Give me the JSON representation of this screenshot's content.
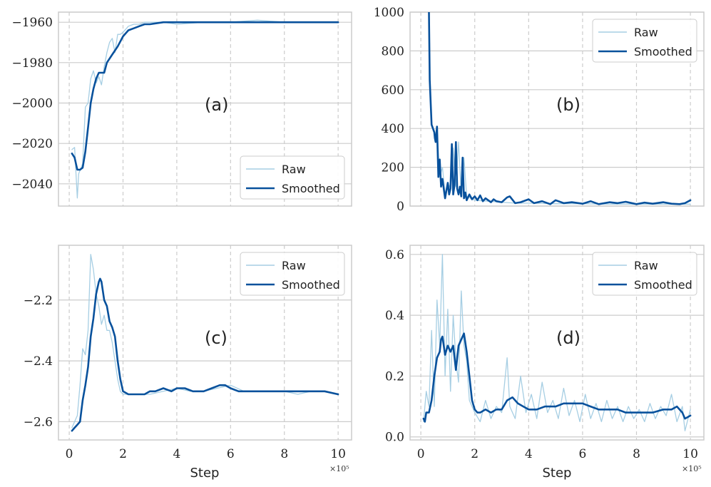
{
  "colors": {
    "raw": "#a6cee3",
    "smoothed": "#08519c",
    "grid": "#cccccc",
    "frame": "#cccccc"
  },
  "chart_data": [
    {
      "id": "a",
      "type": "line",
      "panel_label": "(a)",
      "xlabel": "",
      "ylabel": "",
      "xlim": [
        -0.4,
        10.5
      ],
      "ylim": [
        -2051,
        -1955
      ],
      "xticks": [
        0,
        2,
        4,
        6,
        8,
        10
      ],
      "yticks": [
        -2040,
        -2020,
        -2000,
        -1980,
        -1960
      ],
      "ytick_labels": [
        "−2040",
        "−2020",
        "−2000",
        "−1980",
        "−1960"
      ],
      "show_xticklabels": false,
      "x_scale_label": "",
      "legend": {
        "position": "lower-right",
        "entries": [
          "Raw",
          "Smoothed"
        ]
      },
      "series": [
        {
          "name": "Raw",
          "x": [
            0.1,
            0.2,
            0.3,
            0.35,
            0.5,
            0.6,
            0.7,
            0.8,
            0.9,
            1.0,
            1.1,
            1.2,
            1.3,
            1.4,
            1.5,
            1.6,
            1.7,
            1.8,
            1.9,
            2.0,
            2.2,
            2.4,
            2.6,
            2.8,
            3.0,
            3.2,
            3.5,
            4,
            5,
            6,
            7,
            8,
            9,
            10
          ],
          "y": [
            -2023,
            -2022,
            -2047,
            -2035,
            -2030,
            -2002,
            -2000,
            -1988,
            -1984,
            -1990,
            -1987,
            -1991,
            -1982,
            -1975,
            -1970,
            -1968,
            -1975,
            -1966,
            -1966,
            -1965,
            -1962,
            -1961,
            -1961,
            -1960,
            -1960,
            -1960,
            -1960,
            -1961,
            -1960,
            -1960,
            -1959,
            -1960,
            -1960,
            -1960
          ]
        },
        {
          "name": "Smoothed",
          "x": [
            0.1,
            0.2,
            0.3,
            0.4,
            0.5,
            0.6,
            0.7,
            0.8,
            0.9,
            1.0,
            1.1,
            1.2,
            1.3,
            1.4,
            1.6,
            1.8,
            2.0,
            2.2,
            2.4,
            2.6,
            2.8,
            3.0,
            3.5,
            4,
            5,
            6,
            7,
            8,
            9,
            10
          ],
          "y": [
            -2025,
            -2027,
            -2033,
            -2033,
            -2032,
            -2024,
            -2012,
            -2000,
            -1993,
            -1988,
            -1985,
            -1985,
            -1985,
            -1980,
            -1976,
            -1972,
            -1967,
            -1964,
            -1963,
            -1962,
            -1961,
            -1961,
            -1960,
            -1960,
            -1960,
            -1960,
            -1960,
            -1960,
            -1960,
            -1960
          ]
        }
      ]
    },
    {
      "id": "b",
      "type": "line",
      "panel_label": "(b)",
      "xlabel": "",
      "ylabel": "",
      "xlim": [
        -0.4,
        10.5
      ],
      "ylim": [
        0,
        1000
      ],
      "xticks": [
        0,
        2,
        4,
        6,
        8,
        10
      ],
      "yticks": [
        0,
        200,
        400,
        600,
        800,
        1000
      ],
      "ytick_labels": [
        "0",
        "200",
        "400",
        "600",
        "800",
        "1000"
      ],
      "show_xticklabels": false,
      "x_scale_label": "",
      "legend": {
        "position": "top-right",
        "entries": [
          "Raw",
          "Smoothed"
        ]
      },
      "series": [
        {
          "name": "Raw",
          "x": [
            0.3,
            0.33,
            0.4,
            0.5,
            0.55,
            0.6,
            0.7,
            0.8,
            0.9,
            1.0,
            1.1,
            1.2,
            1.3,
            1.4,
            1.5,
            1.6,
            1.7,
            2,
            2.5,
            3,
            3.5,
            4,
            5,
            6,
            7,
            8,
            9,
            10
          ],
          "y": [
            1000,
            650,
            420,
            390,
            330,
            410,
            150,
            200,
            60,
            120,
            90,
            300,
            100,
            330,
            60,
            250,
            50,
            30,
            25,
            20,
            15,
            15,
            12,
            12,
            10,
            10,
            10,
            10
          ]
        },
        {
          "name": "Smoothed",
          "x": [
            0.3,
            0.33,
            0.4,
            0.5,
            0.52,
            0.55,
            0.6,
            0.65,
            0.7,
            0.75,
            0.8,
            0.9,
            1.0,
            1.05,
            1.1,
            1.15,
            1.2,
            1.25,
            1.3,
            1.35,
            1.4,
            1.45,
            1.5,
            1.55,
            1.6,
            1.65,
            1.7,
            1.8,
            1.9,
            2.0,
            2.1,
            2.2,
            2.3,
            2.4,
            2.5,
            2.6,
            2.7,
            2.8,
            3.0,
            3.2,
            3.3,
            3.5,
            3.7,
            4.0,
            4.2,
            4.5,
            4.8,
            5.0,
            5.3,
            5.6,
            6.0,
            6.3,
            6.6,
            7.0,
            7.3,
            7.6,
            8.0,
            8.3,
            8.6,
            9.0,
            9.3,
            9.6,
            9.8,
            10.0
          ],
          "y": [
            1000,
            650,
            420,
            380,
            350,
            330,
            410,
            150,
            240,
            100,
            140,
            40,
            120,
            60,
            90,
            320,
            60,
            110,
            330,
            90,
            60,
            100,
            50,
            250,
            40,
            70,
            30,
            60,
            35,
            50,
            30,
            55,
            25,
            40,
            30,
            20,
            35,
            25,
            20,
            45,
            50,
            15,
            20,
            35,
            15,
            25,
            10,
            30,
            15,
            20,
            12,
            25,
            10,
            20,
            15,
            22,
            10,
            18,
            12,
            20,
            12,
            10,
            15,
            30
          ]
        }
      ]
    },
    {
      "id": "c",
      "type": "line",
      "panel_label": "(c)",
      "xlabel": "Step",
      "ylabel": "",
      "xlim": [
        -0.4,
        10.5
      ],
      "ylim": [
        -2.66,
        -2.02
      ],
      "xticks": [
        0,
        2,
        4,
        6,
        8,
        10
      ],
      "xtick_labels": [
        "0",
        "2",
        "4",
        "6",
        "8",
        "10"
      ],
      "yticks": [
        -2.6,
        -2.4,
        -2.2
      ],
      "ytick_labels": [
        "−2.6",
        "−2.4",
        "−2.2"
      ],
      "show_xticklabels": true,
      "x_scale_label": "×10⁵",
      "legend": {
        "position": "top-right",
        "entries": [
          "Raw",
          "Smoothed"
        ]
      },
      "series": [
        {
          "name": "Raw",
          "x": [
            0.1,
            0.2,
            0.3,
            0.4,
            0.5,
            0.6,
            0.7,
            0.8,
            0.9,
            1.0,
            1.1,
            1.2,
            1.3,
            1.4,
            1.5,
            1.6,
            1.7,
            1.8,
            1.9,
            2.0,
            2.2,
            2.5,
            3,
            3.5,
            4,
            4.5,
            5,
            5.5,
            6,
            6.5,
            7,
            7.5,
            8,
            8.5,
            9,
            9.5,
            10
          ],
          "y": [
            -2.62,
            -2.6,
            -2.58,
            -2.48,
            -2.36,
            -2.38,
            -2.3,
            -2.05,
            -2.1,
            -2.18,
            -2.22,
            -2.28,
            -2.25,
            -2.3,
            -2.3,
            -2.34,
            -2.4,
            -2.46,
            -2.5,
            -2.51,
            -2.51,
            -2.51,
            -2.51,
            -2.5,
            -2.49,
            -2.5,
            -2.5,
            -2.49,
            -2.48,
            -2.5,
            -2.5,
            -2.5,
            -2.5,
            -2.51,
            -2.5,
            -2.5,
            -2.51
          ]
        },
        {
          "name": "Smoothed",
          "x": [
            0.1,
            0.2,
            0.3,
            0.4,
            0.5,
            0.6,
            0.7,
            0.8,
            0.9,
            1.0,
            1.1,
            1.15,
            1.2,
            1.3,
            1.4,
            1.5,
            1.6,
            1.7,
            1.8,
            1.9,
            2.0,
            2.2,
            2.4,
            2.6,
            2.8,
            3.0,
            3.2,
            3.5,
            3.8,
            4.0,
            4.3,
            4.6,
            5.0,
            5.3,
            5.6,
            5.8,
            6.0,
            6.3,
            6.6,
            7.0,
            7.5,
            8.0,
            8.5,
            9.0,
            9.5,
            10.0
          ],
          "y": [
            -2.63,
            -2.62,
            -2.61,
            -2.6,
            -2.53,
            -2.48,
            -2.42,
            -2.32,
            -2.26,
            -2.18,
            -2.14,
            -2.13,
            -2.14,
            -2.2,
            -2.22,
            -2.27,
            -2.29,
            -2.32,
            -2.4,
            -2.46,
            -2.5,
            -2.51,
            -2.51,
            -2.51,
            -2.51,
            -2.5,
            -2.5,
            -2.49,
            -2.5,
            -2.49,
            -2.49,
            -2.5,
            -2.5,
            -2.49,
            -2.48,
            -2.48,
            -2.49,
            -2.5,
            -2.5,
            -2.5,
            -2.5,
            -2.5,
            -2.5,
            -2.5,
            -2.5,
            -2.51
          ]
        }
      ]
    },
    {
      "id": "d",
      "type": "line",
      "panel_label": "(d)",
      "xlabel": "Step",
      "ylabel": "",
      "xlim": [
        -0.4,
        10.5
      ],
      "ylim": [
        -0.01,
        0.63
      ],
      "xticks": [
        0,
        2,
        4,
        6,
        8,
        10
      ],
      "xtick_labels": [
        "0",
        "2",
        "4",
        "6",
        "8",
        "10"
      ],
      "yticks": [
        0.0,
        0.2,
        0.4,
        0.6
      ],
      "ytick_labels": [
        "0.0",
        "0.2",
        "0.4",
        "0.6"
      ],
      "show_xticklabels": true,
      "x_scale_label": "×10⁵",
      "legend": {
        "position": "top-right",
        "entries": [
          "Raw",
          "Smoothed"
        ]
      },
      "series": [
        {
          "name": "Raw",
          "x": [
            0.1,
            0.2,
            0.3,
            0.4,
            0.5,
            0.6,
            0.7,
            0.8,
            0.9,
            1.0,
            1.1,
            1.2,
            1.3,
            1.4,
            1.5,
            1.6,
            1.7,
            1.8,
            1.9,
            2.0,
            2.2,
            2.4,
            2.6,
            2.8,
            3.0,
            3.2,
            3.3,
            3.5,
            3.7,
            3.9,
            4.1,
            4.3,
            4.5,
            4.7,
            4.9,
            5.1,
            5.3,
            5.5,
            5.7,
            5.9,
            6.1,
            6.3,
            6.5,
            6.7,
            6.9,
            7.1,
            7.3,
            7.5,
            7.7,
            7.9,
            8.1,
            8.3,
            8.5,
            8.7,
            8.9,
            9.1,
            9.3,
            9.5,
            9.7,
            9.8,
            10.0
          ],
          "y": [
            0.05,
            0.15,
            0.1,
            0.35,
            0.1,
            0.45,
            0.3,
            0.6,
            0.2,
            0.42,
            0.15,
            0.4,
            0.25,
            0.18,
            0.48,
            0.3,
            0.25,
            0.12,
            0.1,
            0.08,
            0.05,
            0.12,
            0.06,
            0.1,
            0.08,
            0.26,
            0.1,
            0.06,
            0.2,
            0.08,
            0.14,
            0.06,
            0.18,
            0.08,
            0.12,
            0.06,
            0.16,
            0.07,
            0.12,
            0.05,
            0.14,
            0.06,
            0.11,
            0.05,
            0.12,
            0.06,
            0.1,
            0.05,
            0.1,
            0.06,
            0.09,
            0.05,
            0.11,
            0.06,
            0.1,
            0.07,
            0.14,
            0.05,
            0.1,
            0.02,
            0.09
          ]
        },
        {
          "name": "Smoothed",
          "x": [
            0.1,
            0.15,
            0.2,
            0.3,
            0.4,
            0.5,
            0.6,
            0.7,
            0.75,
            0.8,
            0.9,
            1.0,
            1.1,
            1.2,
            1.3,
            1.4,
            1.5,
            1.6,
            1.7,
            1.8,
            1.9,
            2.0,
            2.1,
            2.2,
            2.4,
            2.6,
            2.8,
            3.0,
            3.2,
            3.4,
            3.6,
            3.8,
            4.0,
            4.3,
            4.6,
            5.0,
            5.3,
            5.6,
            6.0,
            6.3,
            6.6,
            7.0,
            7.3,
            7.6,
            8.0,
            8.3,
            8.6,
            9.0,
            9.3,
            9.5,
            9.7,
            9.8,
            10.0
          ],
          "y": [
            0.06,
            0.05,
            0.08,
            0.08,
            0.12,
            0.2,
            0.26,
            0.28,
            0.32,
            0.33,
            0.27,
            0.3,
            0.28,
            0.3,
            0.22,
            0.3,
            0.32,
            0.34,
            0.28,
            0.2,
            0.12,
            0.09,
            0.08,
            0.08,
            0.09,
            0.08,
            0.09,
            0.09,
            0.12,
            0.13,
            0.11,
            0.1,
            0.09,
            0.09,
            0.1,
            0.1,
            0.11,
            0.11,
            0.11,
            0.1,
            0.09,
            0.09,
            0.09,
            0.08,
            0.08,
            0.08,
            0.08,
            0.09,
            0.09,
            0.1,
            0.08,
            0.06,
            0.07
          ]
        }
      ]
    }
  ]
}
